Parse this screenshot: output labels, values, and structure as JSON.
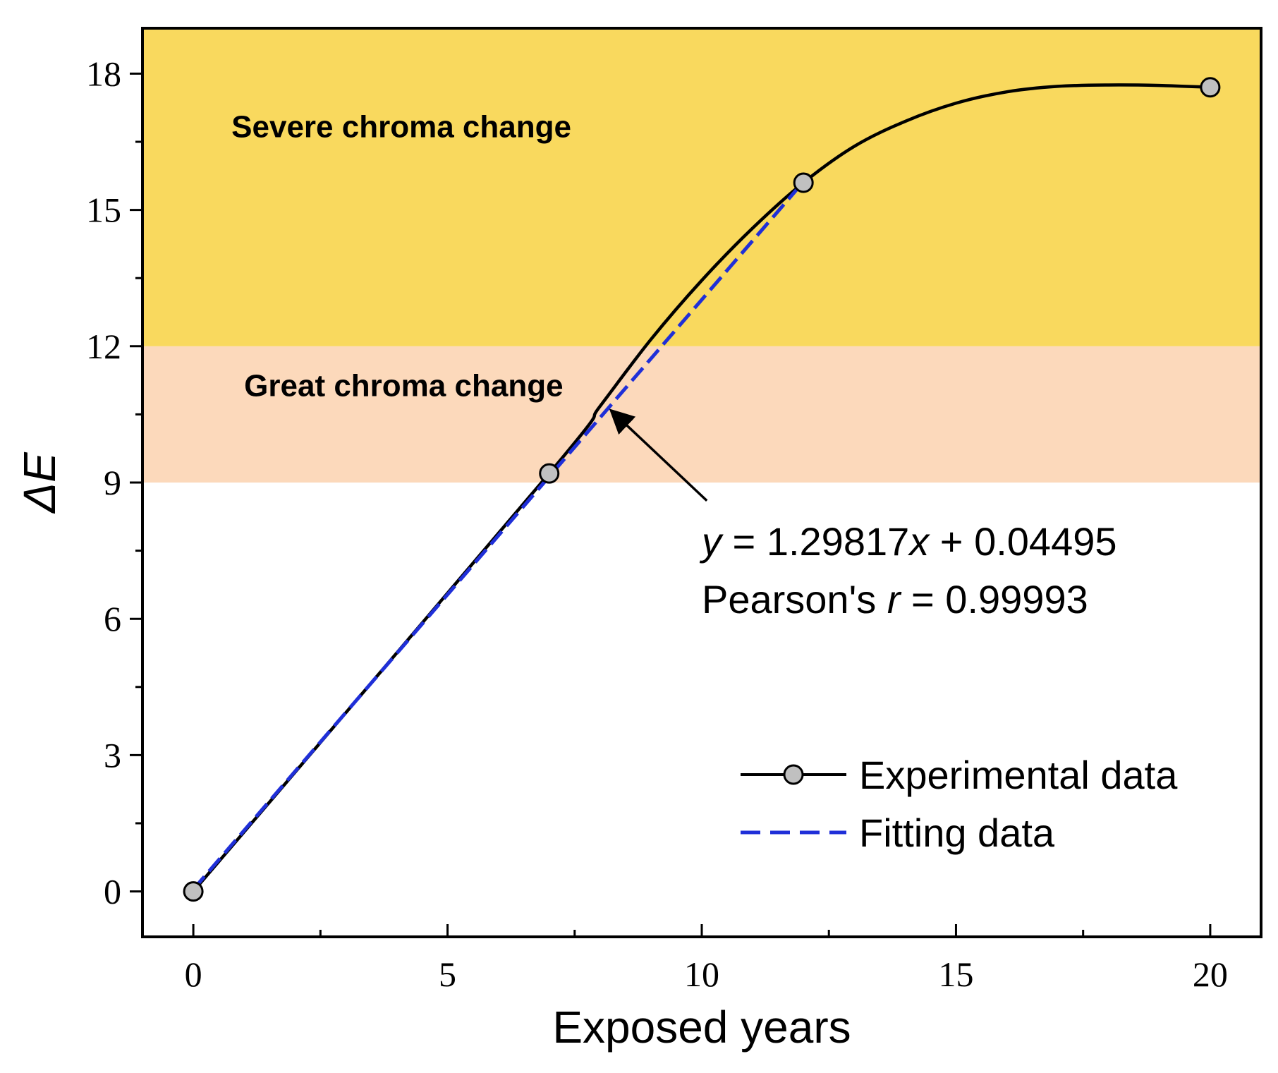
{
  "chart_data": {
    "type": "line",
    "xlabel": "Exposed years",
    "ylabel": "ΔE",
    "xlim": [
      -1,
      21
    ],
    "ylim": [
      -1,
      19
    ],
    "x_ticks": [
      0,
      5,
      10,
      15,
      20
    ],
    "y_ticks": [
      0,
      3,
      6,
      9,
      12,
      15,
      18
    ],
    "grid": false,
    "bands": [
      {
        "name": "Great chroma change",
        "y_from": 9,
        "y_to": 12,
        "color": "#fcd9bb",
        "label_x": 1,
        "label_y": 10.9
      },
      {
        "name": "Severe chroma change",
        "y_from": 12,
        "y_to": 19,
        "color": "#f9d95e",
        "label_x": 0.75,
        "label_y": 16.6
      }
    ],
    "series": [
      {
        "name": "Experimental data",
        "style": "solid-with-markers",
        "color": "#000000",
        "marker_fill": "#c0c0c0",
        "points": [
          [
            0,
            0
          ],
          [
            7,
            9.2
          ],
          [
            12,
            15.6
          ],
          [
            20,
            17.7
          ]
        ],
        "curve": [
          [
            0,
            0
          ],
          [
            7,
            9.2
          ],
          [
            8,
            10.68
          ],
          [
            9,
            12.15
          ],
          [
            10,
            13.45
          ],
          [
            11,
            14.6
          ],
          [
            12,
            15.6
          ],
          [
            13,
            16.4
          ],
          [
            14,
            16.95
          ],
          [
            15,
            17.35
          ],
          [
            16,
            17.6
          ],
          [
            17,
            17.72
          ],
          [
            18,
            17.75
          ],
          [
            19,
            17.74
          ],
          [
            20,
            17.7
          ]
        ]
      },
      {
        "name": "Fitting data",
        "style": "dashed",
        "color": "#1f2fd8",
        "points": [
          [
            0,
            0.045
          ],
          [
            12,
            15.62
          ]
        ]
      }
    ],
    "annotations": {
      "equation_y": "y",
      "equation_rest": " = 1.29817",
      "equation_x": "x",
      "equation_tail": " + 0.04495",
      "pearson_prefix": "Pearson's ",
      "pearson_r": "r",
      "pearson_value": " = 0.99993",
      "arrow_from": [
        10.1,
        8.6
      ],
      "arrow_to": [
        8.25,
        10.55
      ],
      "text_x": 10,
      "text_y": 7.4
    },
    "legend_position": "bottom-right"
  }
}
